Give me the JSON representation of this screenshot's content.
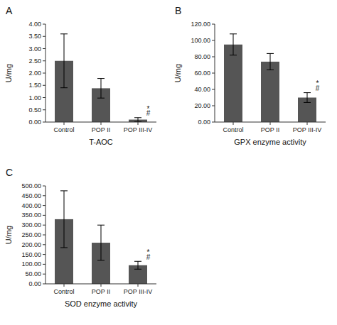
{
  "chart_data": [
    {
      "type": "bar",
      "title": "A",
      "xlabel": "T-AOC",
      "ylabel": "U/mg",
      "categories": [
        "Control",
        "POP II",
        "POP III-IV"
      ],
      "values": [
        2.5,
        1.38,
        0.1
      ],
      "errors": [
        1.1,
        0.4,
        0.08
      ],
      "color": "#555555",
      "ylim": [
        0,
        4.0
      ],
      "yticks": [
        {
          "value": 0.0,
          "label": "0.00"
        },
        {
          "value": 0.5,
          "label": "0.50"
        },
        {
          "value": 1.0,
          "label": "1.00"
        },
        {
          "value": 1.5,
          "label": "1.50"
        },
        {
          "value": 2.0,
          "label": "2.00"
        },
        {
          "value": 2.5,
          "label": "2.50"
        },
        {
          "value": 3.0,
          "label": "3.00"
        },
        {
          "value": 3.5,
          "label": "3.50"
        },
        {
          "value": 4.0,
          "label": "4.00"
        }
      ],
      "annotations": [
        {
          "text": "#",
          "category": "POP III-IV"
        },
        {
          "text": "*",
          "category": "POP III-IV"
        }
      ],
      "grid": false
    },
    {
      "type": "bar",
      "title": "B",
      "xlabel": "GPX enzyme activity",
      "ylabel": "U/mg",
      "categories": [
        "Control",
        "POP II",
        "POP III-IV"
      ],
      "values": [
        95.0,
        74.0,
        30.0
      ],
      "errors": [
        13.0,
        10.0,
        6.0
      ],
      "color": "#555555",
      "ylim": [
        0,
        120.0
      ],
      "yticks": [
        {
          "value": 0.0,
          "label": "0.00"
        },
        {
          "value": 20.0,
          "label": "20.00"
        },
        {
          "value": 40.0,
          "label": "40.00"
        },
        {
          "value": 60.0,
          "label": "60.00"
        },
        {
          "value": 80.0,
          "label": "80.00"
        },
        {
          "value": 100.0,
          "label": "100.00"
        },
        {
          "value": 120.0,
          "label": "120.00"
        }
      ],
      "annotations": [
        {
          "text": "#",
          "category": "POP III-IV"
        },
        {
          "text": "*",
          "category": "POP III-IV"
        }
      ],
      "grid": false
    },
    {
      "type": "bar",
      "title": "C",
      "xlabel": "SOD enzyme activity",
      "ylabel": "U/mg",
      "categories": [
        "Control",
        "POP II",
        "POP III-IV"
      ],
      "values": [
        330.0,
        210.0,
        95.0
      ],
      "errors": [
        145.0,
        90.0,
        20.0
      ],
      "color": "#555555",
      "ylim": [
        0,
        500.0
      ],
      "yticks": [
        {
          "value": 0.0,
          "label": "0.00"
        },
        {
          "value": 50.0,
          "label": "50.00"
        },
        {
          "value": 100.0,
          "label": "100.00"
        },
        {
          "value": 150.0,
          "label": "150.00"
        },
        {
          "value": 200.0,
          "label": "200.00"
        },
        {
          "value": 250.0,
          "label": "250.00"
        },
        {
          "value": 300.0,
          "label": "300.00"
        },
        {
          "value": 350.0,
          "label": "350.00"
        },
        {
          "value": 400.0,
          "label": "400.00"
        },
        {
          "value": 450.0,
          "label": "450.00"
        },
        {
          "value": 500.0,
          "label": "500.00"
        }
      ],
      "annotations": [
        {
          "text": "#",
          "category": "POP III-IV"
        },
        {
          "text": "*",
          "category": "POP III-IV"
        }
      ],
      "grid": false
    }
  ]
}
